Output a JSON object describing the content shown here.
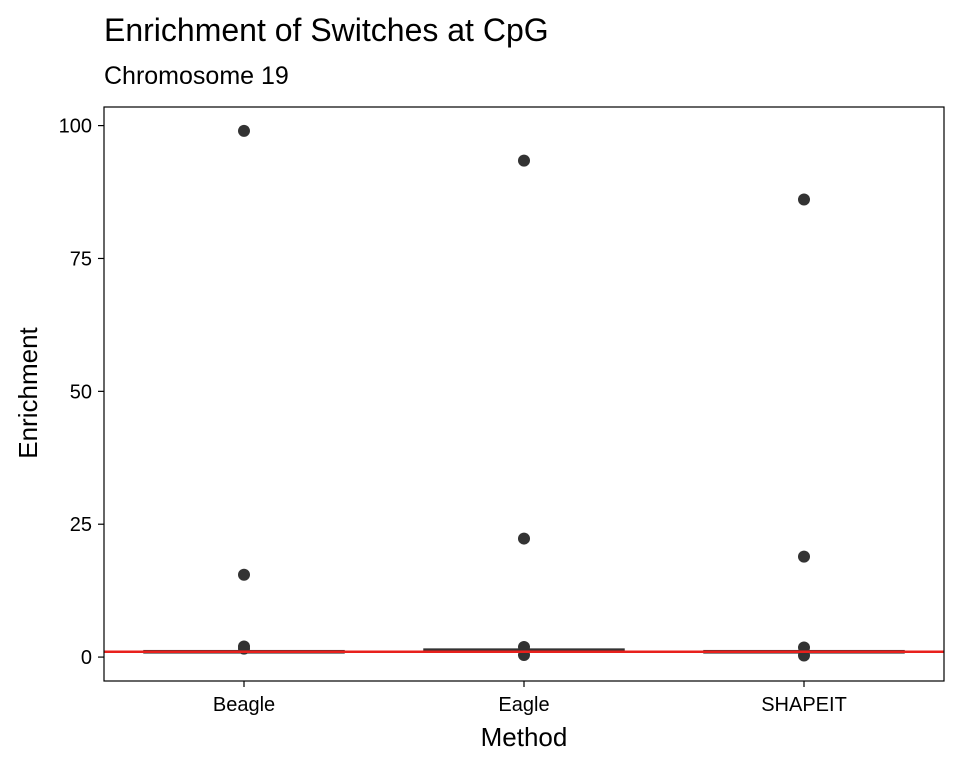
{
  "chart_data": {
    "type": "box",
    "title": "Enrichment of Switches at CpG",
    "subtitle": "Chromosome 19",
    "xlabel": "Method",
    "ylabel": "Enrichment",
    "categories": [
      "Beagle",
      "Eagle",
      "SHAPEIT"
    ],
    "ylim": [
      -4.5,
      103.5
    ],
    "yticks": [
      0,
      25,
      50,
      75,
      100
    ],
    "ytick_labels": [
      "0",
      "25",
      "50",
      "75",
      "100"
    ],
    "boxes": [
      {
        "category": "Beagle",
        "q1": 0.8,
        "median": 1.0,
        "q3": 1.2
      },
      {
        "category": "Eagle",
        "q1": 1.0,
        "median": 1.3,
        "q3": 1.5
      },
      {
        "category": "SHAPEIT",
        "q1": 0.8,
        "median": 1.0,
        "q3": 1.2
      }
    ],
    "outliers": [
      {
        "category": "Beagle",
        "values": [
          99,
          15.5,
          2.0,
          1.6
        ]
      },
      {
        "category": "Eagle",
        "values": [
          93.4,
          22.3,
          1.9,
          0.4
        ]
      },
      {
        "category": "SHAPEIT",
        "values": [
          86.1,
          18.9,
          1.8,
          0.3
        ]
      }
    ],
    "reference_line": {
      "y": 1,
      "color": "#e8201c"
    },
    "colors": {
      "points": "#333333",
      "box": "#333333",
      "frame": "#000000"
    },
    "grid": false,
    "legend": "none"
  }
}
